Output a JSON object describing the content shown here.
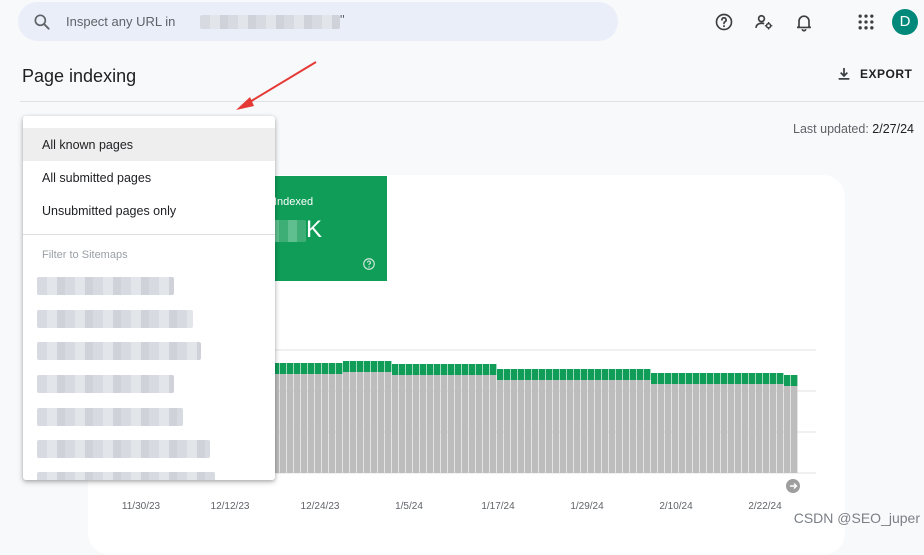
{
  "search": {
    "placeholder": "Inspect any URL in",
    "quote": "\""
  },
  "header": {
    "avatar_letter": "D"
  },
  "page": {
    "title": "Page indexing",
    "export_label": "EXPORT"
  },
  "status": {
    "last_updated_label": "Last updated:",
    "last_updated_value": "2/27/24"
  },
  "summary": {
    "indexed_label": "Indexed",
    "indexed_suffix": "K"
  },
  "dropdown": {
    "options": [
      {
        "label": "All known pages",
        "selected": true
      },
      {
        "label": "All submitted pages",
        "selected": false
      },
      {
        "label": "Unsubmitted pages only",
        "selected": false
      }
    ],
    "section_label": "Filter to Sitemaps"
  },
  "chart_data": {
    "type": "bar",
    "stacked": true,
    "x_tick_labels": [
      "11/30/23",
      "12/12/23",
      "12/24/23",
      "1/5/24",
      "1/17/24",
      "1/29/24",
      "2/10/24",
      "2/22/24"
    ],
    "colors": {
      "indexed": "#0f9d58",
      "not_indexed": "#bdbdbd"
    }
  },
  "watermark": "CSDN @SEO_juper"
}
